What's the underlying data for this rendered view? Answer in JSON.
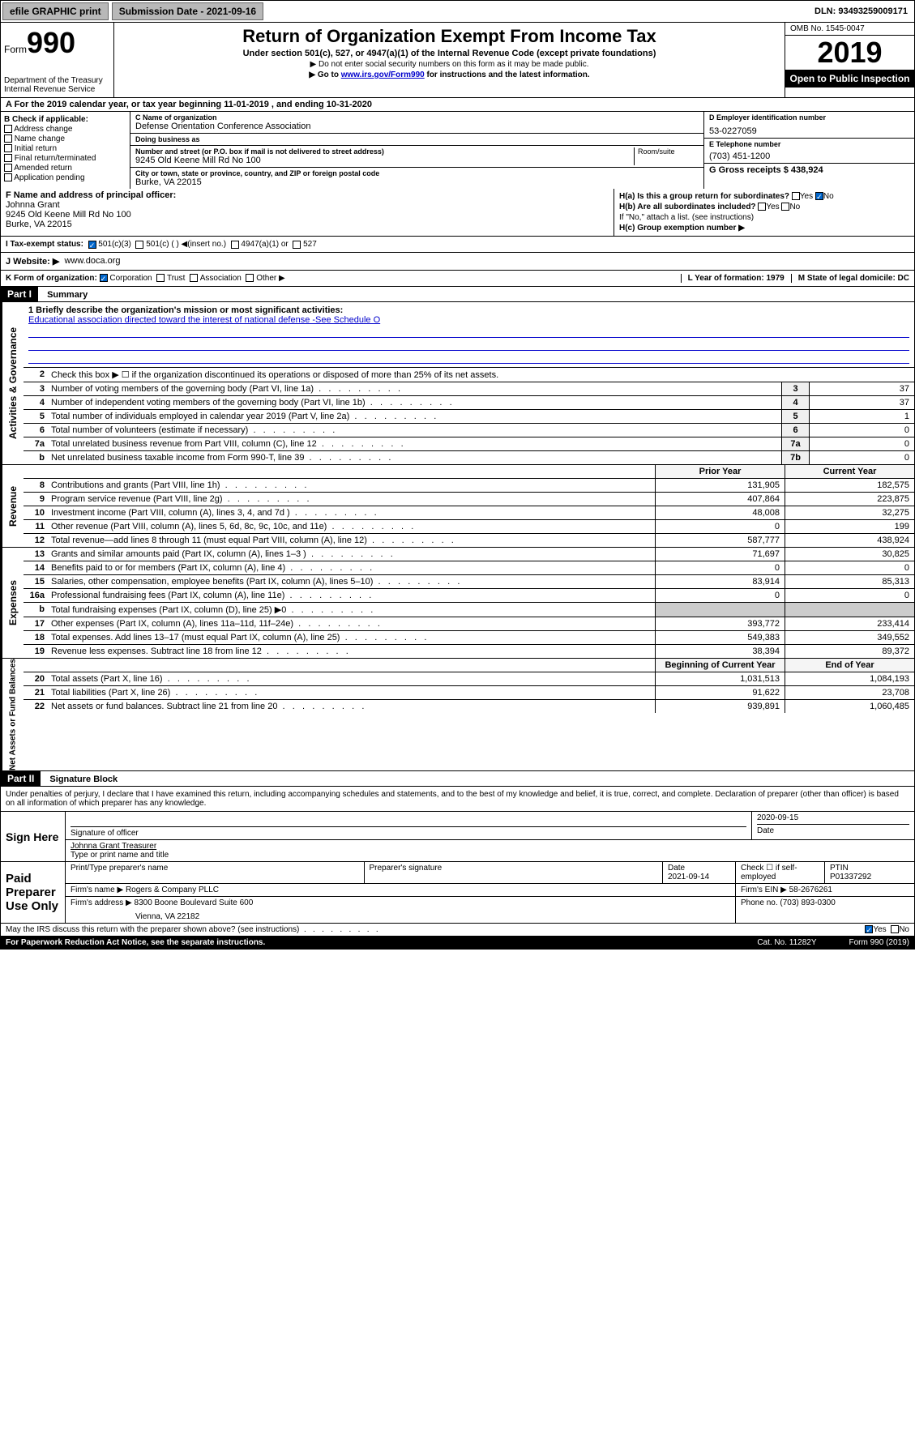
{
  "toolbar": {
    "efile_label": "efile GRAPHIC print",
    "submission_label": "Submission Date - 2021-09-16",
    "dln": "DLN: 93493259009171"
  },
  "header": {
    "form_word": "Form",
    "form_number": "990",
    "dept": "Department of the Treasury\nInternal Revenue Service",
    "title": "Return of Organization Exempt From Income Tax",
    "subtitle": "Under section 501(c), 527, or 4947(a)(1) of the Internal Revenue Code (except private foundations)",
    "note1": "▶ Do not enter social security numbers on this form as it may be made public.",
    "note2_prefix": "▶ Go to ",
    "note2_link": "www.irs.gov/Form990",
    "note2_suffix": " for instructions and the latest information.",
    "omb": "OMB No. 1545-0047",
    "year": "2019",
    "open": "Open to Public Inspection"
  },
  "row_a": "A For the 2019 calendar year, or tax year beginning 11-01-2019    , and ending 10-31-2020",
  "col_b": {
    "heading": "B Check if applicable:",
    "opts": [
      "Address change",
      "Name change",
      "Initial return",
      "Final return/terminated",
      "Amended return",
      "Application pending"
    ]
  },
  "col_c": {
    "name_label": "C Name of organization",
    "name": "Defense Orientation Conference Association",
    "dba_label": "Doing business as",
    "dba": "",
    "addr_label": "Number and street (or P.O. box if mail is not delivered to street address)",
    "addr": "9245 Old Keene Mill Rd No 100",
    "room_label": "Room/suite",
    "city_label": "City or town, state or province, country, and ZIP or foreign postal code",
    "city": "Burke, VA  22015"
  },
  "col_d": {
    "ein_label": "D Employer identification number",
    "ein": "53-0227059",
    "phone_label": "E Telephone number",
    "phone": "(703) 451-1200",
    "gross_label": "G Gross receipts $ 438,924"
  },
  "col_f": {
    "label": "F  Name and address of principal officer:",
    "name": "Johnna Grant",
    "addr1": "9245 Old Keene Mill Rd No 100",
    "addr2": "Burke, VA  22015"
  },
  "col_h": {
    "ha": "H(a)  Is this a group return for subordinates?",
    "hb": "H(b)  Are all subordinates included?",
    "hb_note": "If \"No,\" attach a list. (see instructions)",
    "hc": "H(c)  Group exemption number ▶",
    "yes": "Yes",
    "no": "No"
  },
  "tax_status": {
    "label": "I   Tax-exempt status:",
    "c3": "501(c)(3)",
    "c": "501(c) (  ) ◀(insert no.)",
    "a1": "4947(a)(1) or",
    "s527": "527"
  },
  "website": {
    "label": "J   Website: ▶",
    "url": "www.doca.org"
  },
  "form_org": {
    "k_label": "K Form of organization:",
    "corp": "Corporation",
    "trust": "Trust",
    "assoc": "Association",
    "other": "Other ▶",
    "l_label": "L Year of formation: 1979",
    "m_label": "M State of legal domicile: DC"
  },
  "part1": {
    "num": "Part I",
    "title": "Summary"
  },
  "summary": {
    "l1_label": "1  Briefly describe the organization's mission or most significant activities:",
    "l1_text": "Educational association directed toward the interest of national defense -See Schedule O",
    "l2": "Check this box ▶ ☐  if the organization discontinued its operations or disposed of more than 25% of its net assets.",
    "lines_single": [
      {
        "n": "3",
        "t": "Number of voting members of the governing body (Part VI, line 1a)",
        "ln": "3",
        "v": "37"
      },
      {
        "n": "4",
        "t": "Number of independent voting members of the governing body (Part VI, line 1b)",
        "ln": "4",
        "v": "37"
      },
      {
        "n": "5",
        "t": "Total number of individuals employed in calendar year 2019 (Part V, line 2a)",
        "ln": "5",
        "v": "1"
      },
      {
        "n": "6",
        "t": "Total number of volunteers (estimate if necessary)",
        "ln": "6",
        "v": "0"
      },
      {
        "n": "7a",
        "t": "Total unrelated business revenue from Part VIII, column (C), line 12",
        "ln": "7a",
        "v": "0"
      },
      {
        "n": "b",
        "t": "Net unrelated business taxable income from Form 990-T, line 39",
        "ln": "7b",
        "v": "0"
      }
    ],
    "prior_year": "Prior Year",
    "current_year": "Current Year",
    "revenue": [
      {
        "n": "8",
        "t": "Contributions and grants (Part VIII, line 1h)",
        "p": "131,905",
        "c": "182,575"
      },
      {
        "n": "9",
        "t": "Program service revenue (Part VIII, line 2g)",
        "p": "407,864",
        "c": "223,875"
      },
      {
        "n": "10",
        "t": "Investment income (Part VIII, column (A), lines 3, 4, and 7d )",
        "p": "48,008",
        "c": "32,275"
      },
      {
        "n": "11",
        "t": "Other revenue (Part VIII, column (A), lines 5, 6d, 8c, 9c, 10c, and 11e)",
        "p": "0",
        "c": "199"
      },
      {
        "n": "12",
        "t": "Total revenue—add lines 8 through 11 (must equal Part VIII, column (A), line 12)",
        "p": "587,777",
        "c": "438,924"
      }
    ],
    "expenses": [
      {
        "n": "13",
        "t": "Grants and similar amounts paid (Part IX, column (A), lines 1–3 )",
        "p": "71,697",
        "c": "30,825"
      },
      {
        "n": "14",
        "t": "Benefits paid to or for members (Part IX, column (A), line 4)",
        "p": "0",
        "c": "0"
      },
      {
        "n": "15",
        "t": "Salaries, other compensation, employee benefits (Part IX, column (A), lines 5–10)",
        "p": "83,914",
        "c": "85,313"
      },
      {
        "n": "16a",
        "t": "Professional fundraising fees (Part IX, column (A), line 11e)",
        "p": "0",
        "c": "0"
      },
      {
        "n": "b",
        "t": "Total fundraising expenses (Part IX, column (D), line 25) ▶0",
        "p": "",
        "c": ""
      },
      {
        "n": "17",
        "t": "Other expenses (Part IX, column (A), lines 11a–11d, 11f–24e)",
        "p": "393,772",
        "c": "233,414"
      },
      {
        "n": "18",
        "t": "Total expenses. Add lines 13–17 (must equal Part IX, column (A), line 25)",
        "p": "549,383",
        "c": "349,552"
      },
      {
        "n": "19",
        "t": "Revenue less expenses. Subtract line 18 from line 12",
        "p": "38,394",
        "c": "89,372"
      }
    ],
    "begin_year": "Beginning of Current Year",
    "end_year": "End of Year",
    "netassets": [
      {
        "n": "20",
        "t": "Total assets (Part X, line 16)",
        "p": "1,031,513",
        "c": "1,084,193"
      },
      {
        "n": "21",
        "t": "Total liabilities (Part X, line 26)",
        "p": "91,622",
        "c": "23,708"
      },
      {
        "n": "22",
        "t": "Net assets or fund balances. Subtract line 21 from line 20",
        "p": "939,891",
        "c": "1,060,485"
      }
    ]
  },
  "sidebars": {
    "gov": "Activities & Governance",
    "rev": "Revenue",
    "exp": "Expenses",
    "net": "Net Assets or Fund Balances"
  },
  "part2": {
    "num": "Part II",
    "title": "Signature Block"
  },
  "sig_text": "Under penalties of perjury, I declare that I have examined this return, including accompanying schedules and statements, and to the best of my knowledge and belief, it is true, correct, and complete. Declaration of preparer (other than officer) is based on all information of which preparer has any knowledge.",
  "sign_here": "Sign Here",
  "sig": {
    "date": "2020-09-15",
    "sig_label": "Signature of officer",
    "date_label": "Date",
    "name": "Johnna Grant  Treasurer",
    "name_label": "Type or print name and title"
  },
  "paid": {
    "label": "Paid Preparer Use Only",
    "prep_name_label": "Print/Type preparer's name",
    "prep_sig_label": "Preparer's signature",
    "date_label": "Date",
    "date": "2021-09-14",
    "check_label": "Check ☐ if self-employed",
    "ptin_label": "PTIN",
    "ptin": "P01337292",
    "firm_name_label": "Firm's name    ▶",
    "firm_name": "Rogers & Company PLLC",
    "firm_ein_label": "Firm's EIN ▶",
    "firm_ein": "58-2676261",
    "firm_addr_label": "Firm's address ▶",
    "firm_addr1": "8300 Boone Boulevard Suite 600",
    "firm_addr2": "Vienna, VA  22182",
    "phone_label": "Phone no.",
    "phone": "(703) 893-0300"
  },
  "discuss": "May the IRS discuss this return with the preparer shown above? (see instructions)",
  "footer": {
    "paperwork": "For Paperwork Reduction Act Notice, see the separate instructions.",
    "cat": "Cat. No. 11282Y",
    "form": "Form 990 (2019)"
  }
}
